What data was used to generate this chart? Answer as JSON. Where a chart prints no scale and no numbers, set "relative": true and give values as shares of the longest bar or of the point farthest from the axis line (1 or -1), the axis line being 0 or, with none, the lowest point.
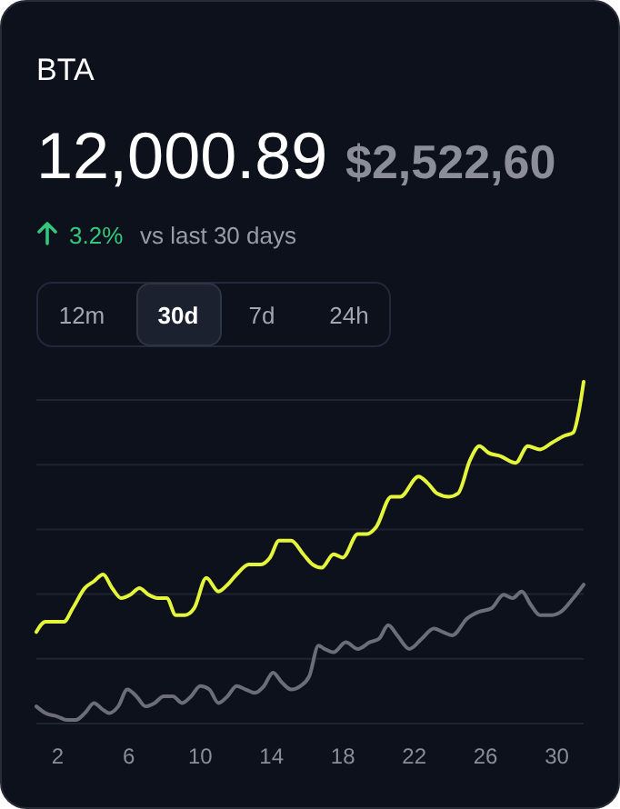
{
  "chart_data": {
    "type": "line",
    "title": "BTA",
    "relative": true,
    "grid": "y",
    "annotations": [
      "12,000.89",
      "$2,522,60",
      "3.2%",
      "vs last 30 days",
      "12m",
      "30d",
      "7d",
      "24h"
    ],
    "xlim": [
      0.81,
      31.5
    ],
    "xticks": [
      2,
      6,
      10,
      14,
      18,
      22,
      26,
      30
    ],
    "series": [
      {
        "color": "#e5f53a",
        "x": [
          0.81,
          1.32,
          2.0,
          2.34,
          2.85,
          3.53,
          4.04,
          4.55,
          5.06,
          5.57,
          6.08,
          6.59,
          7.1,
          7.61,
          8.12,
          8.63,
          9.15,
          9.66,
          10.34,
          11.02,
          11.53,
          12.04,
          12.72,
          13.4,
          13.91,
          14.42,
          15.1,
          15.78,
          16.29,
          16.8,
          17.48,
          17.99,
          18.84,
          19.35,
          19.86,
          20.71,
          21.22,
          22.24,
          22.76,
          23.27,
          23.95,
          24.46,
          25.14,
          25.65,
          26.16,
          26.84,
          27.69,
          28.37,
          29.05,
          29.73,
          30.41,
          30.92,
          31.26,
          31.5
        ],
        "values": [
          0.26,
          0.29,
          0.29,
          0.29,
          0.33,
          0.39,
          0.41,
          0.43,
          0.39,
          0.36,
          0.37,
          0.39,
          0.37,
          0.36,
          0.36,
          0.31,
          0.31,
          0.33,
          0.42,
          0.38,
          0.4,
          0.43,
          0.46,
          0.46,
          0.48,
          0.53,
          0.53,
          0.49,
          0.46,
          0.45,
          0.49,
          0.48,
          0.55,
          0.55,
          0.57,
          0.66,
          0.66,
          0.72,
          0.7,
          0.67,
          0.66,
          0.67,
          0.77,
          0.81,
          0.79,
          0.78,
          0.76,
          0.81,
          0.8,
          0.82,
          0.84,
          0.85,
          0.92,
          1
        ]
      },
      {
        "color": "#6b6e78",
        "x": [
          0.81,
          1.32,
          2.0,
          2.51,
          3.02,
          3.53,
          4.04,
          4.55,
          4.89,
          5.4,
          5.91,
          6.42,
          6.93,
          7.44,
          7.95,
          8.46,
          8.98,
          9.49,
          10.0,
          10.51,
          11.02,
          11.53,
          12.04,
          12.55,
          13.06,
          13.57,
          14.08,
          14.59,
          15.1,
          15.61,
          16.12,
          16.63,
          16.97,
          17.48,
          18.16,
          18.84,
          19.52,
          20.03,
          20.54,
          21.05,
          21.73,
          22.42,
          23.1,
          23.61,
          24.12,
          24.97,
          25.65,
          26.33,
          27.01,
          27.52,
          28.03,
          28.54,
          29.05,
          29.73,
          30.24,
          30.92,
          31.5
        ],
        "values": [
          0.04,
          0.02,
          0.01,
          0,
          0,
          0.02,
          0.05,
          0.03,
          0.02,
          0.04,
          0.09,
          0.07,
          0.04,
          0.05,
          0.07,
          0.07,
          0.05,
          0.07,
          0.1,
          0.09,
          0.05,
          0.07,
          0.1,
          0.09,
          0.08,
          0.1,
          0.14,
          0.11,
          0.09,
          0.1,
          0.13,
          0.22,
          0.21,
          0.2,
          0.23,
          0.21,
          0.23,
          0.24,
          0.28,
          0.25,
          0.21,
          0.24,
          0.27,
          0.26,
          0.25,
          0.3,
          0.32,
          0.33,
          0.37,
          0.36,
          0.38,
          0.34,
          0.31,
          0.31,
          0.32,
          0.36,
          0.4
        ]
      }
    ]
  }
}
